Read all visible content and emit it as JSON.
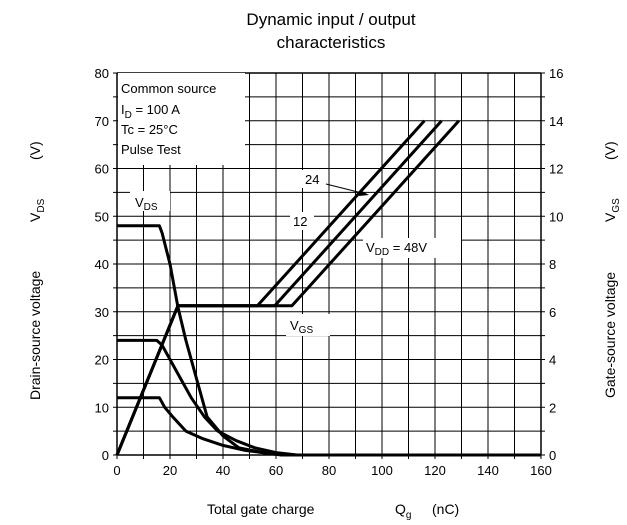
{
  "chart_data": {
    "type": "line",
    "title_line1": "Dynamic input / output",
    "title_line2": "characteristics",
    "xlabel": "Total gate charge",
    "xlabel_symbol": "Q",
    "xlabel_symbol_sub": "g",
    "xlabel_unit": "(nC)",
    "ylabel_left": "Drain-source voltage",
    "ylabel_left_symbol": "V",
    "ylabel_left_symbol_sub": "DS",
    "ylabel_left_unit": "(V)",
    "ylabel_right": "Gate-source voltage",
    "ylabel_right_symbol": "V",
    "ylabel_right_symbol_sub": "GS",
    "ylabel_right_unit": "(V)",
    "xlim": [
      0,
      160
    ],
    "ylim_left": [
      0,
      80
    ],
    "ylim_right": [
      0,
      16
    ],
    "x_ticks": [
      "0",
      "20",
      "40",
      "60",
      "80",
      "100",
      "120",
      "140",
      "160"
    ],
    "y_left_ticks": [
      "0",
      "10",
      "20",
      "30",
      "40",
      "50",
      "60",
      "70",
      "80"
    ],
    "y_right_ticks": [
      "0",
      "2",
      "4",
      "6",
      "8",
      "10",
      "12",
      "14",
      "16"
    ],
    "grid": true,
    "conditions": {
      "line1": "Common source",
      "line2_symbol": "I",
      "line2_sub": "D",
      "line2_rest": " = 100 A",
      "line3": "Tc = 25°C",
      "line4": "Pulse Test"
    },
    "annotations": {
      "vds_label": "V",
      "vds_label_sub": "DS",
      "vgs_label": "V",
      "vgs_label_sub": "GS",
      "vdd_label": "V",
      "vdd_label_sub": "DD",
      "vdd_value": " = 48V",
      "label_24": "24",
      "label_12": "12"
    },
    "series": [
      {
        "axis": "left",
        "x": [
          0,
          16,
          17,
          20,
          23,
          26,
          30,
          34,
          40,
          46,
          55,
          63,
          70,
          160
        ],
        "y": [
          48,
          48,
          46.5,
          40,
          31,
          24,
          16,
          8,
          4,
          1.5,
          0.5,
          0,
          0,
          0
        ]
      },
      {
        "axis": "left",
        "x": [
          0,
          15,
          17,
          20,
          24,
          28,
          33,
          38,
          45,
          52,
          60,
          68,
          160
        ],
        "y": [
          24,
          24,
          23,
          20,
          16,
          12,
          8,
          5,
          3,
          1.5,
          0.5,
          0,
          0
        ]
      },
      {
        "axis": "left",
        "x": [
          0,
          16,
          18,
          21,
          26,
          32,
          40,
          48,
          55,
          62,
          160
        ],
        "y": [
          12,
          12,
          10,
          8,
          5,
          3.5,
          2,
          1,
          0.5,
          0,
          0
        ]
      },
      {
        "axis": "right",
        "x": [
          0,
          23,
          53,
          116
        ],
        "y": [
          0,
          6.25,
          6.25,
          14
        ]
      },
      {
        "axis": "right",
        "x": [
          0,
          23,
          59.5,
          122.5
        ],
        "y": [
          0,
          6.25,
          6.25,
          14
        ]
      },
      {
        "axis": "right",
        "x": [
          0,
          23,
          66,
          129
        ],
        "y": [
          0,
          6.25,
          6.25,
          14
        ]
      }
    ]
  }
}
